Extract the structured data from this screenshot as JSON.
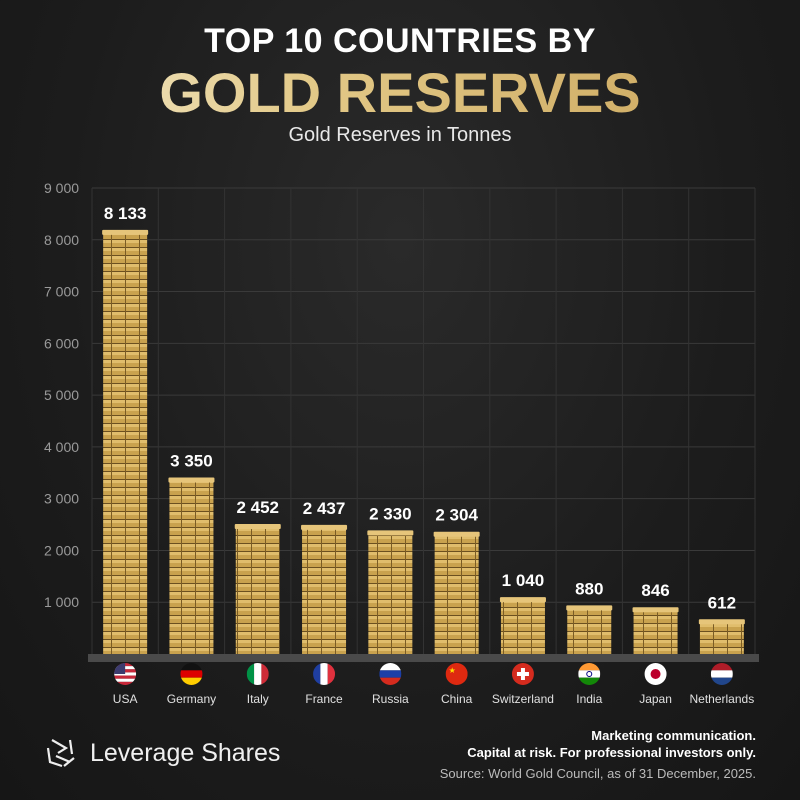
{
  "header": {
    "line1": "TOP 10 COUNTRIES BY",
    "line2": "GOLD RESERVES",
    "subtitle": "Gold Reserves in Tonnes"
  },
  "chart_data": {
    "type": "bar",
    "title": "TOP 10 COUNTRIES BY GOLD RESERVES",
    "subtitle": "Gold Reserves in Tonnes",
    "categories": [
      "USA",
      "Germany",
      "Italy",
      "France",
      "Russia",
      "China",
      "Switzerland",
      "India",
      "Japan",
      "Netherlands"
    ],
    "values": [
      8133,
      3350,
      2452,
      2437,
      2330,
      2304,
      1040,
      880,
      846,
      612
    ],
    "value_labels": [
      "8 133",
      "3 350",
      "2 452",
      "2 437",
      "2 330",
      "2 304",
      "1 040",
      "880",
      "846",
      "612"
    ],
    "ylim": [
      0,
      9000
    ],
    "yticks": [
      "1 000",
      "2 000",
      "3 000",
      "4 000",
      "5 000",
      "6 000",
      "7 000",
      "8 000",
      "9 000"
    ],
    "grid": true,
    "bar_color": "#c9a24e",
    "flag_icons": [
      "us-flag-icon",
      "germany-flag-icon",
      "italy-flag-icon",
      "france-flag-icon",
      "russia-flag-icon",
      "china-flag-icon",
      "switzerland-flag-icon",
      "india-flag-icon",
      "japan-flag-icon",
      "netherlands-flag-icon"
    ]
  },
  "footer": {
    "brand": "Leverage Shares",
    "disclaimer1": "Marketing communication.",
    "disclaimer2": "Capital at risk. For professional investors only.",
    "source": "Source: World Gold Council, as of 31 December, 2025."
  }
}
